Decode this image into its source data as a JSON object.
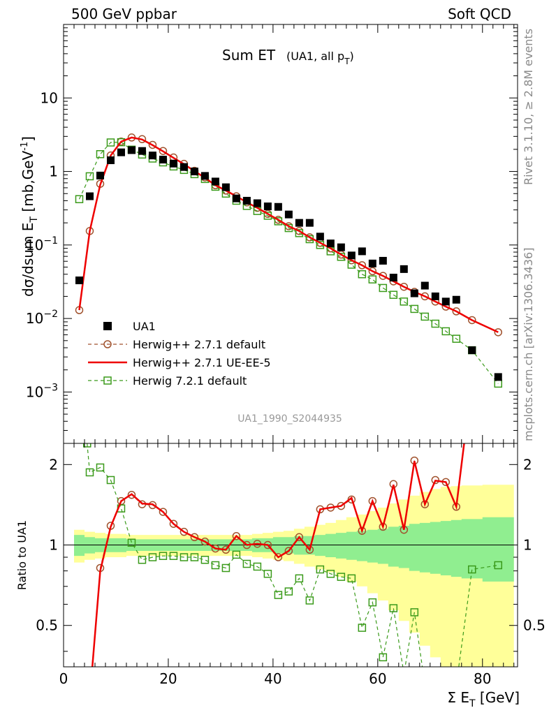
{
  "header": {
    "left": "500 GeV ppbar",
    "right": "Soft QCD"
  },
  "side": {
    "rivet": "Rivet 3.1.10, ≥ 2.8M events",
    "mcplots": "mcplots.cern.ch [arXiv:1306.3436]"
  },
  "watermark": "UA1_1990_S2044935",
  "chart_data": [
    {
      "type": "scatter",
      "title_main": "Sum ET",
      "title_sub": "(UA1, all p",
      "title_sub_index": "T",
      "ylabel": "dσ/dsum E",
      "ylabel_sub": "T",
      "ylabel_unit": "[mb,GeV",
      "ylabel_sup": "-1",
      "yscale": "log",
      "ylim": [
        0.0002,
        100
      ],
      "xlim": [
        0,
        86.7
      ],
      "yticks": [
        {
          "value": 10,
          "label": "10"
        },
        {
          "value": 1,
          "label": "1"
        },
        {
          "value": 0.1,
          "base": "10",
          "exp": "−1"
        },
        {
          "value": 0.01,
          "base": "10",
          "exp": "−2"
        },
        {
          "value": 0.001,
          "base": "10",
          "exp": "−3"
        }
      ],
      "legend_position": "bottom-left",
      "series": [
        {
          "name": "UA1",
          "color": "#000000",
          "marker": "filled-square",
          "x": [
            3,
            5,
            7,
            9,
            11,
            13,
            15,
            17,
            19,
            21,
            23,
            25,
            27,
            29,
            31,
            33,
            35,
            37,
            39,
            41,
            43,
            45,
            47,
            49,
            51,
            53,
            55,
            57,
            59,
            61,
            63,
            65,
            67,
            69,
            71,
            73,
            75,
            78,
            83
          ],
          "y": [
            0.033,
            0.46,
            0.88,
            1.42,
            1.82,
            1.95,
            1.9,
            1.65,
            1.45,
            1.28,
            1.15,
            1.0,
            0.87,
            0.73,
            0.61,
            0.43,
            0.4,
            0.37,
            0.335,
            0.33,
            0.26,
            0.2,
            0.2,
            0.13,
            0.105,
            0.093,
            0.072,
            0.082,
            0.056,
            0.061,
            0.036,
            0.047,
            0.022,
            0.028,
            0.02,
            0.017,
            0.018,
            0.0037,
            0.0016
          ]
        },
        {
          "name": "Herwig++ 2.7.1 default",
          "color": "#a0522d",
          "marker": "open-circle",
          "dash": "dashed",
          "x": [
            3,
            5,
            7,
            9,
            11,
            13,
            15,
            17,
            19,
            21,
            23,
            25,
            27,
            29,
            31,
            33,
            35,
            37,
            39,
            41,
            43,
            45,
            47,
            49,
            51,
            53,
            55,
            57,
            59,
            61,
            63,
            65,
            67,
            69,
            71,
            73,
            75,
            78,
            83
          ],
          "y": [
            0.013,
            0.155,
            0.68,
            1.65,
            2.55,
            2.9,
            2.75,
            2.3,
            1.9,
            1.55,
            1.27,
            1.02,
            0.83,
            0.65,
            0.55,
            0.46,
            0.38,
            0.32,
            0.265,
            0.22,
            0.18,
            0.155,
            0.127,
            0.107,
            0.09,
            0.074,
            0.062,
            0.053,
            0.044,
            0.038,
            0.032,
            0.027,
            0.023,
            0.02,
            0.017,
            0.0145,
            0.0125,
            0.0095,
            0.0065
          ]
        },
        {
          "name": "Herwig++ 2.7.1 UE-EE-5",
          "color": "#ee0000",
          "marker": "line",
          "x": [
            3,
            5,
            7,
            9,
            11,
            13,
            15,
            17,
            19,
            21,
            23,
            25,
            27,
            29,
            31,
            33,
            35,
            37,
            39,
            41,
            43,
            45,
            47,
            49,
            51,
            53,
            55,
            57,
            59,
            61,
            63,
            65,
            67,
            69,
            71,
            73,
            75,
            78,
            83
          ],
          "y": [
            0.013,
            0.155,
            0.66,
            1.65,
            2.55,
            2.9,
            2.72,
            2.28,
            1.88,
            1.53,
            1.26,
            1.01,
            0.82,
            0.65,
            0.55,
            0.46,
            0.38,
            0.32,
            0.265,
            0.22,
            0.18,
            0.155,
            0.127,
            0.107,
            0.09,
            0.074,
            0.062,
            0.053,
            0.044,
            0.038,
            0.032,
            0.027,
            0.023,
            0.02,
            0.017,
            0.0145,
            0.0125,
            0.0095,
            0.0065
          ]
        },
        {
          "name": "Herwig 7.2.1 default",
          "color": "#3a9a1a",
          "marker": "open-square",
          "dash": "dashed",
          "x": [
            3,
            5,
            7,
            9,
            11,
            13,
            15,
            17,
            19,
            21,
            23,
            25,
            27,
            29,
            31,
            33,
            35,
            37,
            39,
            41,
            43,
            45,
            47,
            49,
            51,
            53,
            55,
            57,
            59,
            61,
            63,
            65,
            67,
            69,
            71,
            73,
            75,
            78,
            83
          ],
          "y": [
            0.42,
            0.86,
            1.72,
            2.48,
            2.5,
            1.98,
            1.7,
            1.5,
            1.33,
            1.17,
            1.05,
            0.92,
            0.79,
            0.62,
            0.5,
            0.4,
            0.34,
            0.29,
            0.25,
            0.21,
            0.17,
            0.145,
            0.12,
            0.1,
            0.082,
            0.069,
            0.054,
            0.04,
            0.034,
            0.026,
            0.021,
            0.017,
            0.0135,
            0.0106,
            0.0085,
            0.0067,
            0.0053,
            0.0037,
            0.0013
          ]
        }
      ]
    },
    {
      "type": "line",
      "ylabel": "Ratio to UA1",
      "xlabel": "Σ E",
      "xlabel_sub": "T",
      "xlabel_unit": "[GeV]",
      "xlim": [
        0,
        86.7
      ],
      "ylim": [
        0.35,
        2.4
      ],
      "yscale": "log",
      "xticks": [
        0,
        20,
        40,
        60,
        80
      ],
      "yticks": [
        {
          "value": 0.5,
          "label": "0.5"
        },
        {
          "value": 1,
          "label": "1"
        },
        {
          "value": 2,
          "label": "2"
        }
      ],
      "bands": {
        "x": [
          2,
          4,
          6,
          8,
          10,
          12,
          14,
          16,
          18,
          20,
          22,
          24,
          26,
          28,
          30,
          32,
          34,
          36,
          38,
          40,
          42,
          44,
          46,
          48,
          50,
          52,
          54,
          56,
          58,
          60,
          62,
          64,
          66,
          68,
          70,
          72,
          74,
          76,
          80,
          86
        ],
        "stat_low": [
          0.91,
          0.93,
          0.94,
          0.94,
          0.94,
          0.95,
          0.95,
          0.95,
          0.95,
          0.95,
          0.95,
          0.95,
          0.95,
          0.95,
          0.95,
          0.95,
          0.95,
          0.94,
          0.94,
          0.93,
          0.93,
          0.92,
          0.92,
          0.91,
          0.9,
          0.89,
          0.88,
          0.87,
          0.86,
          0.85,
          0.83,
          0.82,
          0.8,
          0.79,
          0.78,
          0.77,
          0.76,
          0.75,
          0.73,
          0.73
        ],
        "stat_high": [
          1.09,
          1.07,
          1.06,
          1.06,
          1.06,
          1.05,
          1.05,
          1.05,
          1.05,
          1.05,
          1.05,
          1.05,
          1.05,
          1.05,
          1.05,
          1.05,
          1.05,
          1.06,
          1.06,
          1.07,
          1.07,
          1.08,
          1.08,
          1.09,
          1.1,
          1.11,
          1.12,
          1.13,
          1.14,
          1.15,
          1.17,
          1.18,
          1.2,
          1.21,
          1.22,
          1.23,
          1.24,
          1.25,
          1.27,
          1.27
        ],
        "tot_low": [
          0.86,
          0.88,
          0.89,
          0.9,
          0.9,
          0.91,
          0.91,
          0.91,
          0.91,
          0.91,
          0.91,
          0.91,
          0.91,
          0.91,
          0.91,
          0.91,
          0.91,
          0.9,
          0.89,
          0.88,
          0.87,
          0.85,
          0.83,
          0.81,
          0.79,
          0.76,
          0.73,
          0.7,
          0.66,
          0.62,
          0.57,
          0.52,
          0.47,
          0.42,
          0.38,
          0.35,
          0.35,
          0.35,
          0.35,
          0.35
        ],
        "tot_high": [
          1.14,
          1.12,
          1.11,
          1.1,
          1.1,
          1.09,
          1.09,
          1.09,
          1.09,
          1.09,
          1.09,
          1.09,
          1.09,
          1.09,
          1.09,
          1.09,
          1.09,
          1.1,
          1.11,
          1.12,
          1.13,
          1.15,
          1.17,
          1.19,
          1.21,
          1.24,
          1.27,
          1.3,
          1.34,
          1.38,
          1.43,
          1.48,
          1.53,
          1.58,
          1.62,
          1.65,
          1.66,
          1.67,
          1.68,
          1.68
        ],
        "stat_color": "#90ee90",
        "tot_color": "#ffff99"
      },
      "reference_line": 1,
      "series": [
        {
          "name": "Herwig++ 2.7.1 default",
          "color": "#a0522d",
          "marker": "open-circle",
          "x": [
            7,
            9,
            11,
            13,
            15,
            17,
            19,
            21,
            23,
            25,
            27,
            29,
            31,
            33,
            35,
            37,
            39,
            41,
            43,
            45,
            47,
            49,
            51,
            53,
            55,
            57,
            59,
            61,
            63,
            65,
            67,
            69,
            71,
            73,
            75
          ],
          "y": [
            0.82,
            1.18,
            1.46,
            1.54,
            1.42,
            1.41,
            1.33,
            1.2,
            1.12,
            1.07,
            1.03,
            0.97,
            0.96,
            1.08,
            1.0,
            1.01,
            1.0,
            0.9,
            0.95,
            1.07,
            0.96,
            1.36,
            1.38,
            1.4,
            1.48,
            1.13,
            1.46,
            1.17,
            1.69,
            1.14,
            2.07,
            1.42,
            1.75,
            1.72,
            1.39
          ]
        },
        {
          "name": "Herwig++ 2.7.1 UE-EE-5",
          "color": "#ee0000",
          "marker": "line",
          "x": [
            5.5,
            7,
            9,
            11,
            13,
            15,
            17,
            19,
            21,
            23,
            25,
            27,
            29,
            31,
            33,
            35,
            37,
            39,
            41,
            43,
            45,
            47,
            49,
            51,
            53,
            55,
            57,
            59,
            61,
            63,
            65,
            67,
            69,
            71,
            73,
            75,
            76.5
          ],
          "y": [
            0.35,
            0.8,
            1.17,
            1.46,
            1.55,
            1.43,
            1.42,
            1.33,
            1.2,
            1.12,
            1.07,
            1.03,
            0.97,
            0.96,
            1.08,
            1.0,
            1.01,
            1.0,
            0.9,
            0.95,
            1.07,
            0.96,
            1.36,
            1.38,
            1.4,
            1.5,
            1.13,
            1.46,
            1.17,
            1.68,
            1.14,
            2.06,
            1.42,
            1.74,
            1.72,
            1.39,
            2.4
          ]
        },
        {
          "name": "Herwig 7.2.1 default",
          "color": "#3a9a1a",
          "marker": "open-square",
          "x": [
            4.5,
            5,
            7,
            9,
            11,
            13,
            15,
            17,
            19,
            21,
            23,
            25,
            27,
            29,
            31,
            33,
            35,
            37,
            39,
            41,
            43,
            45,
            47,
            49,
            51,
            53,
            55,
            57,
            59,
            61,
            63,
            65,
            67,
            69,
            75,
            78,
            83
          ],
          "y": [
            2.4,
            1.87,
            1.95,
            1.75,
            1.37,
            1.02,
            0.88,
            0.9,
            0.91,
            0.91,
            0.9,
            0.9,
            0.88,
            0.84,
            0.82,
            0.92,
            0.85,
            0.83,
            0.78,
            0.65,
            0.67,
            0.75,
            0.62,
            0.81,
            0.78,
            0.76,
            0.75,
            0.49,
            0.61,
            0.38,
            0.58,
            0.33,
            0.56,
            0.3,
            0.3,
            0.81,
            0.84
          ]
        }
      ]
    }
  ]
}
